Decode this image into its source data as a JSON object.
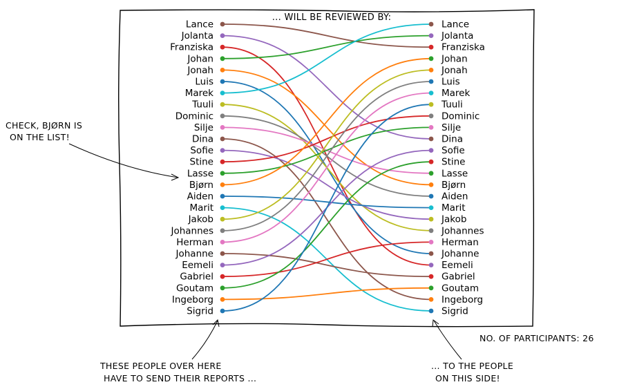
{
  "title": "... WILL BE REVIEWED BY:",
  "participants_label": "NO. OF PARTICIPANTS: 26",
  "annotations": {
    "check_lines": [
      "CHECK, BJØRN IS",
      "ON THE LIST!"
    ],
    "senders_lines": [
      "THESE PEOPLE OVER HERE",
      "HAVE TO SEND THEIR REPORTS ..."
    ],
    "receivers_lines": [
      "... TO THE PEOPLE",
      "ON THIS SIDE!"
    ]
  },
  "colors": [
    "#8c564b",
    "#9467bd",
    "#d62728",
    "#2ca02c",
    "#ff7f0e",
    "#1f77b4",
    "#17becf",
    "#bcbd22",
    "#7f7f7f",
    "#e377c2"
  ],
  "left_names": [
    "Lance",
    "Jolanta",
    "Franziska",
    "Johan",
    "Jonah",
    "Luis",
    "Marek",
    "Tuuli",
    "Dominic",
    "Silje",
    "Dina",
    "Sofie",
    "Stine",
    "Lasse",
    "Bjørn",
    "Aiden",
    "Marit",
    "Jakob",
    "Johannes",
    "Herman",
    "Johanne",
    "Eemeli",
    "Gabriel",
    "Goutam",
    "Ingeborg",
    "Sigrid"
  ],
  "right_names": [
    "Lance",
    "Jolanta",
    "Franziska",
    "Johan",
    "Jonah",
    "Luis",
    "Marek",
    "Tuuli",
    "Dominic",
    "Silje",
    "Dina",
    "Sofie",
    "Stine",
    "Lasse",
    "Bjørn",
    "Aiden",
    "Marit",
    "Jakob",
    "Johannes",
    "Herman",
    "Johanne",
    "Eemeli",
    "Gabriel",
    "Goutam",
    "Ingeborg",
    "Sigrid"
  ],
  "chart_data": {
    "type": "bipartite-assignment",
    "pairs": [
      {
        "sender": "Lance",
        "reviewer": "Franziska"
      },
      {
        "sender": "Jolanta",
        "reviewer": "Dina"
      },
      {
        "sender": "Franziska",
        "reviewer": "Eemeli"
      },
      {
        "sender": "Johan",
        "reviewer": "Jolanta"
      },
      {
        "sender": "Jonah",
        "reviewer": "Bjørn"
      },
      {
        "sender": "Luis",
        "reviewer": "Johanne"
      },
      {
        "sender": "Marek",
        "reviewer": "Lance"
      },
      {
        "sender": "Tuuli",
        "reviewer": "Johannes"
      },
      {
        "sender": "Dominic",
        "reviewer": "Aiden"
      },
      {
        "sender": "Silje",
        "reviewer": "Lasse"
      },
      {
        "sender": "Dina",
        "reviewer": "Ingeborg"
      },
      {
        "sender": "Sofie",
        "reviewer": "Jakob"
      },
      {
        "sender": "Stine",
        "reviewer": "Dominic"
      },
      {
        "sender": "Lasse",
        "reviewer": "Silje"
      },
      {
        "sender": "Bjørn",
        "reviewer": "Johan"
      },
      {
        "sender": "Aiden",
        "reviewer": "Marit"
      },
      {
        "sender": "Marit",
        "reviewer": "Sigrid"
      },
      {
        "sender": "Jakob",
        "reviewer": "Jonah"
      },
      {
        "sender": "Johannes",
        "reviewer": "Luis"
      },
      {
        "sender": "Herman",
        "reviewer": "Marek"
      },
      {
        "sender": "Johanne",
        "reviewer": "Gabriel"
      },
      {
        "sender": "Eemeli",
        "reviewer": "Sofie"
      },
      {
        "sender": "Gabriel",
        "reviewer": "Herman"
      },
      {
        "sender": "Goutam",
        "reviewer": "Stine"
      },
      {
        "sender": "Ingeborg",
        "reviewer": "Goutam"
      },
      {
        "sender": "Sigrid",
        "reviewer": "Tuuli"
      }
    ]
  }
}
